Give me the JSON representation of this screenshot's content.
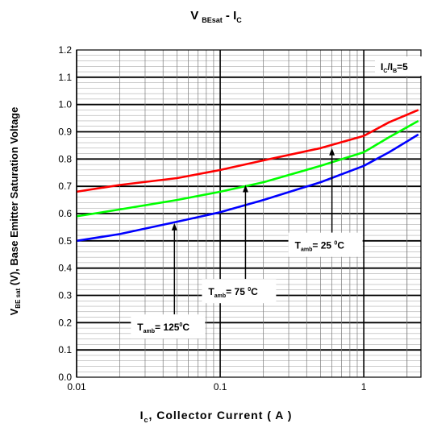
{
  "chart_data": {
    "type": "line",
    "title": {
      "main": "V",
      "sub1": "BEsat",
      "mid": " - I",
      "sub2": "C"
    },
    "xlabel": {
      "main": "I",
      "sub": "c",
      "rest": ", Collector Current ( A )"
    },
    "ylabel": {
      "main": "V",
      "sub": "BE sat",
      "rest": " (V), Base Emitter Saturation Voltage"
    },
    "x_scale": "log",
    "xlim": [
      0.01,
      2.5
    ],
    "ylim": [
      0.0,
      1.2
    ],
    "x_ticks": [
      "0.01",
      "0.1",
      "1"
    ],
    "y_ticks": [
      "0.0",
      "0.1",
      "0.2",
      "0.3",
      "0.4",
      "0.5",
      "0.6",
      "0.7",
      "0.8",
      "0.9",
      "1.0",
      "1.1",
      "1.2"
    ],
    "grid": true,
    "condition": {
      "main": "I",
      "sub1": "C",
      "mid": "/I",
      "sub2": "B",
      "rest": "=5"
    },
    "series": [
      {
        "name": "T amb = 25 °C",
        "color": "#ff0000",
        "x": [
          0.01,
          0.02,
          0.05,
          0.1,
          0.2,
          0.5,
          1.0,
          1.5,
          2.4
        ],
        "y": [
          0.68,
          0.705,
          0.73,
          0.76,
          0.795,
          0.84,
          0.885,
          0.935,
          0.98
        ]
      },
      {
        "name": "T amb = 75 °C",
        "color": "#00ff00",
        "x": [
          0.01,
          0.02,
          0.05,
          0.1,
          0.2,
          0.5,
          1.0,
          1.5,
          2.4
        ],
        "y": [
          0.59,
          0.615,
          0.65,
          0.68,
          0.715,
          0.775,
          0.825,
          0.88,
          0.94
        ]
      },
      {
        "name": "T amb = 125 °C",
        "color": "#0000ff",
        "x": [
          0.01,
          0.02,
          0.05,
          0.1,
          0.2,
          0.5,
          1.0,
          1.5,
          2.4
        ],
        "y": [
          0.5,
          0.525,
          0.57,
          0.605,
          0.65,
          0.715,
          0.775,
          0.825,
          0.89
        ]
      }
    ],
    "annotations": [
      {
        "main": "T",
        "sub": "amb",
        "value": "= 25 ",
        "deg": "0",
        "unit": "C",
        "arrow_x": 0.6,
        "arrow_from_y": 0.53,
        "arrow_to_y": 0.84
      },
      {
        "main": "T",
        "sub": "amb",
        "value": "= 75 ",
        "deg": "0",
        "unit": "C",
        "arrow_x": 0.15,
        "arrow_from_y": 0.36,
        "arrow_to_y": 0.705
      },
      {
        "main": "T",
        "sub": "amb",
        "value": "= 125",
        "deg": "0",
        "unit": "C",
        "arrow_x": 0.048,
        "arrow_from_y": 0.23,
        "arrow_to_y": 0.565
      }
    ]
  }
}
